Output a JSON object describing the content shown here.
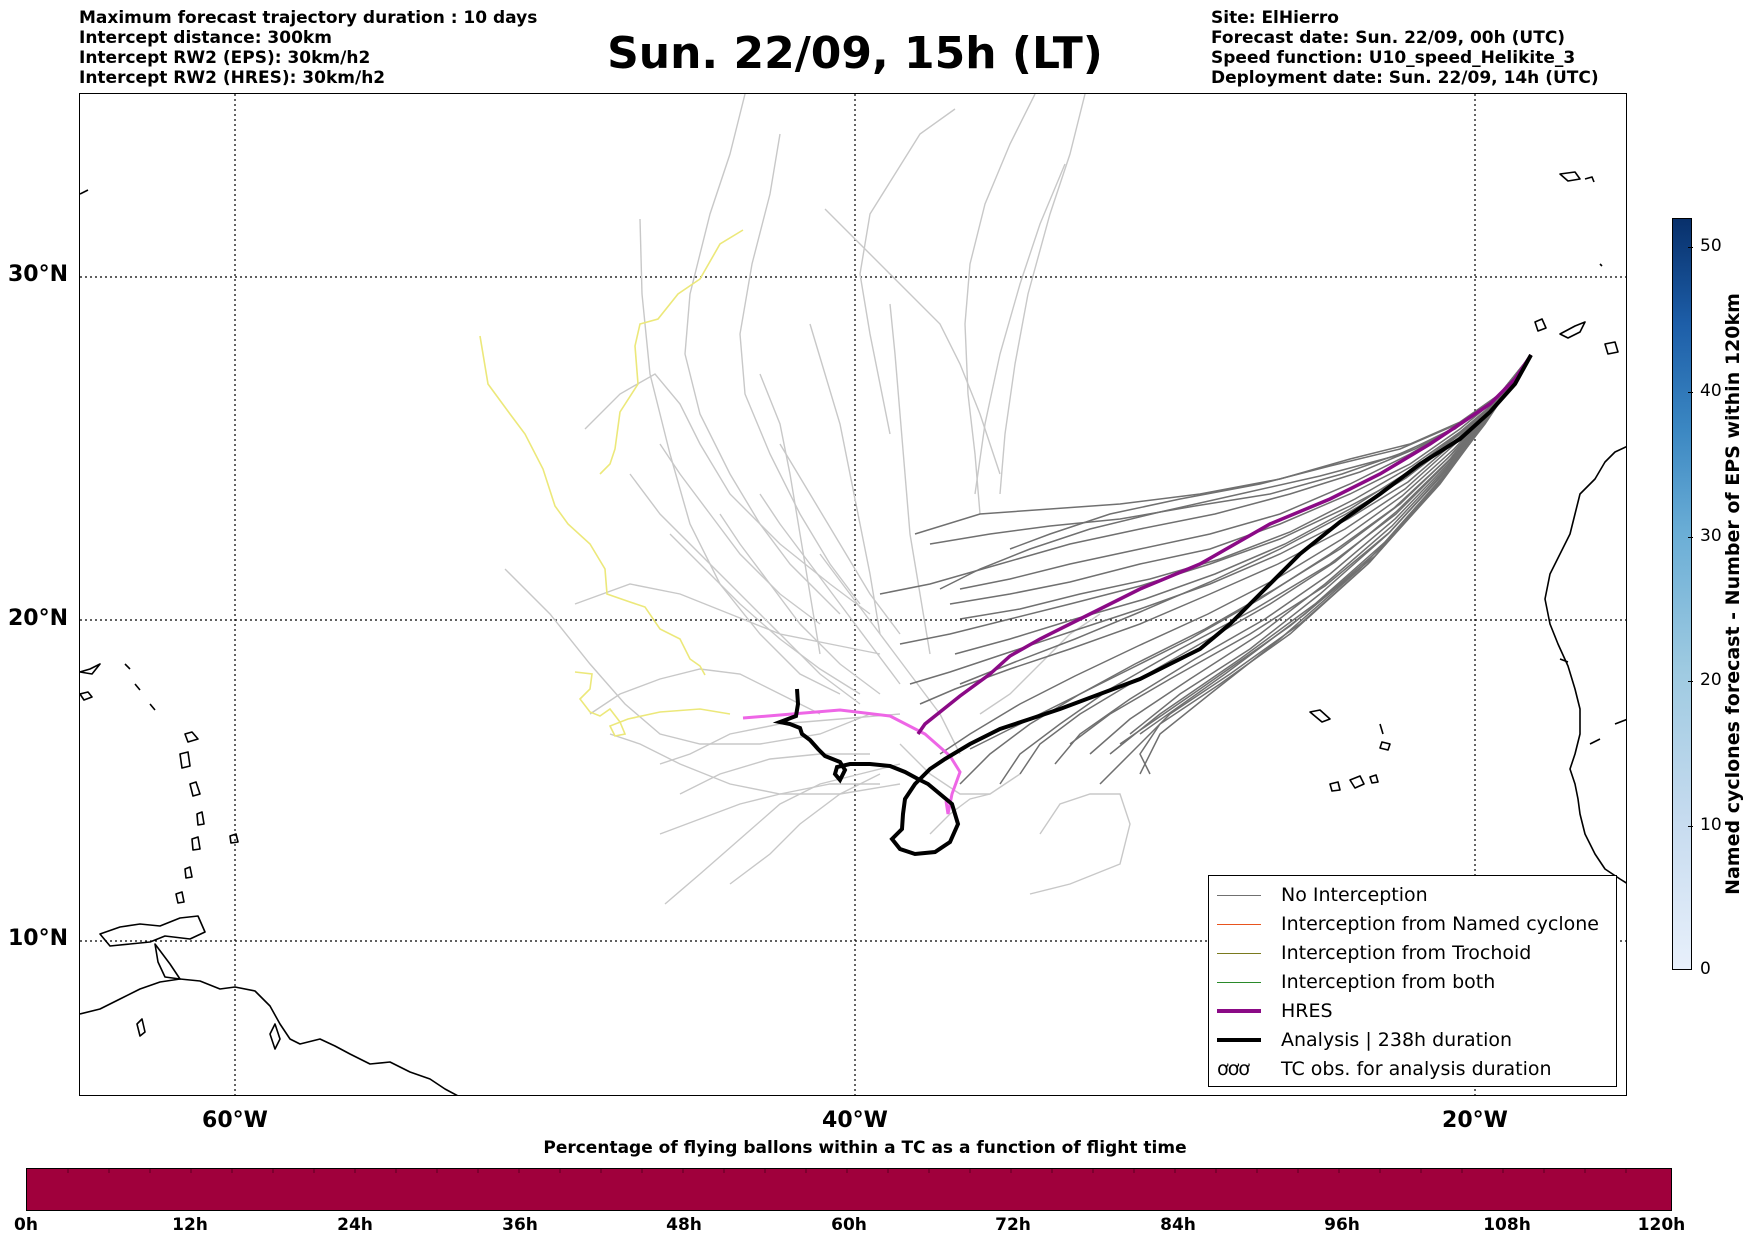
{
  "header": {
    "left_lines": [
      "Maximum forecast trajectory duration : 10 days",
      "Intercept distance: 300km",
      "Intercept RW2 (EPS):  30km/h2",
      "Intercept RW2 (HRES): 30km/h2"
    ],
    "title": "Sun. 22/09, 15h (LT)",
    "right_lines": [
      "Site: ElHierro",
      "Forecast date: Sun. 22/09, 00h (UTC)",
      "Speed function: U10_speed_Helikite_3",
      "Deployment date: Sun. 22/09, 14h (UTC)"
    ]
  },
  "map": {
    "lat_labels": [
      "30°N",
      "20°N",
      "10°N"
    ],
    "lon_labels": [
      "60°W",
      "40°W",
      "20°W"
    ],
    "colors": {
      "no_interception": "#707070",
      "faded_track": "#c8c8c8",
      "yellow_track": "#ece87a",
      "named_cyclone": "#e8541e",
      "trochoid": "#7a7a1e",
      "both": "#2a8a2a",
      "hres": "#8b0a86",
      "hres_faded": "#ee66e6",
      "analysis": "#000000"
    }
  },
  "legend": {
    "items": [
      {
        "label": "No Interception",
        "color": "#707070",
        "style": "thin"
      },
      {
        "label": "Interception from Named cyclone",
        "color": "#e8541e",
        "style": "thin"
      },
      {
        "label": "Interception from Trochoid",
        "color": "#7a7a1e",
        "style": "thin"
      },
      {
        "label": "Interception from both",
        "color": "#2a8a2a",
        "style": "thin"
      },
      {
        "label": "HRES",
        "color": "#8b0a86",
        "style": "thick"
      },
      {
        "label": "Analysis | 238h duration",
        "color": "#000000",
        "style": "thick"
      },
      {
        "label": "TC obs. for analysis duration",
        "color": "#000000",
        "style": "symbol",
        "symbol": "ơơơ"
      }
    ]
  },
  "vertical_colorbar": {
    "label": "Named cyclones forecast - Number of EPS within 120km",
    "ticks": [
      "50",
      "40",
      "30",
      "20",
      "10",
      "0"
    ]
  },
  "horizontal_colorbar": {
    "title": "Percentage of flying ballons within a TC as a function of flight time",
    "ticks": [
      "0h",
      "12h",
      "24h",
      "36h",
      "48h",
      "60h",
      "72h",
      "84h",
      "96h",
      "108h",
      "120h"
    ],
    "color": "#a0003c"
  }
}
